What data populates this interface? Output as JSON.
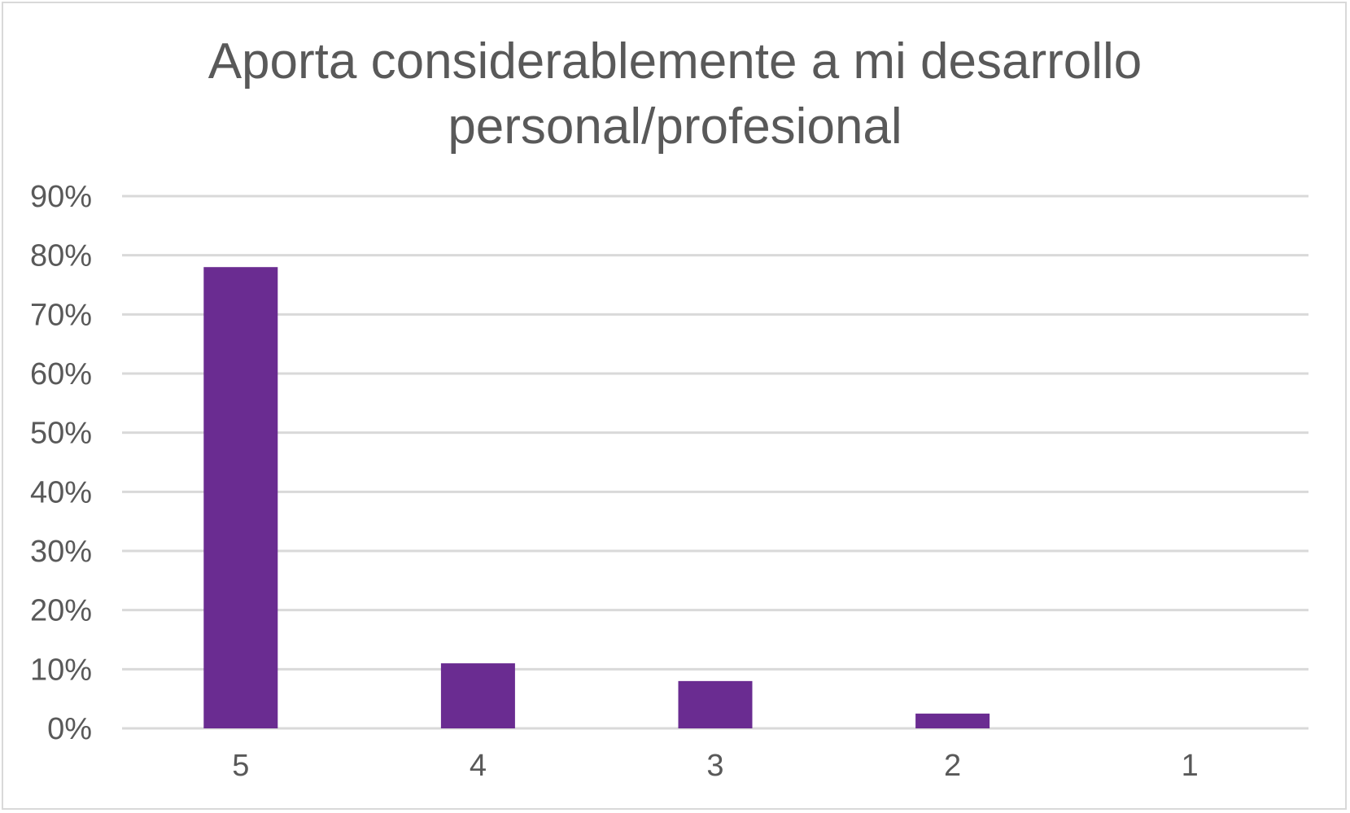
{
  "chart_data": {
    "type": "bar",
    "title_lines": [
      "Aporta considerablemente a mi desarrollo",
      "personal/profesional"
    ],
    "categories": [
      "5",
      "4",
      "3",
      "2",
      "1"
    ],
    "values": [
      78,
      11,
      8,
      2.5,
      0
    ],
    "ylim": [
      0,
      90
    ],
    "yticks": [
      0,
      10,
      20,
      30,
      40,
      50,
      60,
      70,
      80,
      90
    ],
    "ytick_labels": [
      "0%",
      "10%",
      "20%",
      "30%",
      "40%",
      "50%",
      "60%",
      "70%",
      "80%",
      "90%"
    ],
    "grid": true,
    "bar_color": "#6a2c91",
    "grid_color": "#d9d9d9",
    "text_color": "#595959"
  }
}
